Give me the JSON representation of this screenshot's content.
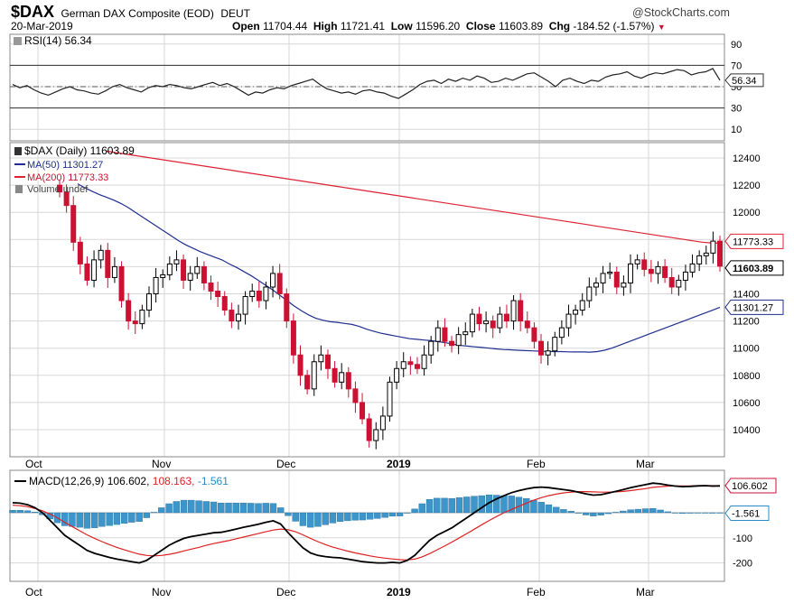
{
  "header": {
    "symbol": "$DAX",
    "name": "German DAX Composite (EOD)",
    "exchange": "DEUT",
    "date": "20-Mar-2019",
    "brand": "@StockCharts.com",
    "open_label": "Open",
    "open": "11704.44",
    "high_label": "High",
    "high": "11721.41",
    "low_label": "Low",
    "low": "11596.20",
    "close_label": "Close",
    "close": "11603.89",
    "chg_label": "Chg",
    "chg": "-184.52 (-1.57%)"
  },
  "colors": {
    "up": "#000000",
    "down": "#cc1133",
    "ma50": "#1f2f8f",
    "ma200": "#dd2233",
    "macd_line": "#000000",
    "signal_line": "#dd2222",
    "histogram": "#3d95c9",
    "hist_value_text": "#2a8cc4",
    "grid": "#d7d7d7"
  },
  "months": [
    "Oct",
    "Nov",
    "Dec",
    "2019",
    "Feb",
    "Mar"
  ],
  "rsi": {
    "legend": "RSI(14) 56.34",
    "badge": "56.34",
    "ticks": [
      "90",
      "70",
      "50",
      "30",
      "10"
    ],
    "values": [
      52,
      49,
      51,
      47,
      44,
      42,
      45,
      48,
      50,
      47,
      46,
      44,
      43,
      46,
      50,
      52,
      49,
      47,
      45,
      49,
      51,
      50,
      52,
      51,
      49,
      48,
      50,
      52,
      54,
      51,
      53,
      50,
      46,
      42,
      45,
      44,
      47,
      49,
      48,
      51,
      53,
      55,
      57,
      52,
      48,
      46,
      44,
      45,
      43,
      46,
      47,
      45,
      44,
      41,
      39,
      43,
      47,
      52,
      55,
      56,
      53,
      57,
      55,
      58,
      56,
      60,
      58,
      54,
      55,
      58,
      56,
      59,
      62,
      63,
      59,
      55,
      50,
      56,
      58,
      55,
      53,
      56,
      55,
      59,
      61,
      62,
      64,
      60,
      58,
      61,
      63,
      62,
      64,
      66,
      65,
      61,
      63,
      64,
      67,
      56
    ]
  },
  "price": {
    "legend_main": "$DAX (Daily) 11603.89",
    "legend_ma50": "MA(50) 11301.27",
    "legend_ma200": "MA(200) 11773.33",
    "legend_volume": "Volume undef",
    "badge_ma200": "11773.33",
    "badge_close": "11603.89",
    "badge_ma50": "11301.27",
    "ticks": [
      "12400",
      "12200",
      "12000",
      "11800",
      "11600",
      "11400",
      "11200",
      "11000",
      "10800",
      "10600",
      "10400"
    ],
    "closes": [
      12150,
      12050,
      11780,
      11620,
      11500,
      11650,
      11720,
      11520,
      11600,
      11350,
      11200,
      11180,
      11280,
      11400,
      11520,
      11540,
      11620,
      11650,
      11500,
      11550,
      11600,
      11480,
      11420,
      11380,
      11280,
      11200,
      11250,
      11380,
      11420,
      11350,
      11450,
      11550,
      11400,
      11200,
      10950,
      10800,
      10700,
      10900,
      10950,
      10850,
      10750,
      10820,
      10700,
      10600,
      10480,
      10320,
      10400,
      10500,
      10750,
      10850,
      10900,
      10880,
      10850,
      10950,
      11050,
      11150,
      11050,
      11020,
      11100,
      11120,
      11250,
      11180,
      11200,
      11150,
      11250,
      11200,
      11350,
      11200,
      11150,
      11050,
      10950,
      10980,
      11080,
      11150,
      11250,
      11280,
      11350,
      11450,
      11480,
      11550,
      11560,
      11450,
      11480,
      11620,
      11650,
      11580,
      11550,
      11600,
      11520,
      11450,
      11500,
      11560,
      11620,
      11680,
      11700,
      11788,
      11604
    ],
    "ma50": [
      12210,
      12180,
      12155,
      12130,
      12110,
      12090,
      12065,
      12035,
      12000,
      11965,
      11930,
      11895,
      11860,
      11825,
      11790,
      11760,
      11735,
      11710,
      11690,
      11670,
      11650,
      11620,
      11595,
      11565,
      11535,
      11500,
      11465,
      11430,
      11390,
      11350,
      11310,
      11275,
      11245,
      11220,
      11205,
      11195,
      11190,
      11182,
      11175,
      11160,
      11140,
      11125,
      11110,
      11100,
      11090,
      11080,
      11070,
      11065,
      11060,
      11055,
      11048,
      11040,
      11030,
      11020,
      11015,
      11010,
      11005,
      11000,
      10995,
      10990,
      10988,
      10985,
      10982,
      10980,
      10978,
      10976,
      10975,
      10975,
      10973,
      10972,
      10972,
      10971,
      10975,
      10985,
      11000,
      11020,
      11040,
      11060,
      11080,
      11100,
      11120,
      11140,
      11160,
      11180,
      11200,
      11220,
      11240,
      11260,
      11280,
      11301
    ],
    "ma200": [
      12450,
      12440,
      12430,
      12420,
      12410,
      12400,
      12390,
      12380,
      12370,
      12360,
      12350,
      12340,
      12330,
      12320,
      12310,
      12300,
      12290,
      12280,
      12270,
      12260,
      12250,
      12240,
      12230,
      12220,
      12210,
      12200,
      12190,
      12180,
      12170,
      12160,
      12150,
      12140,
      12130,
      12120,
      12110,
      12100,
      12090,
      12080,
      12070,
      12060,
      12050,
      12040,
      12030,
      12020,
      12010,
      12000,
      11990,
      11980,
      11970,
      11960,
      11950,
      11940,
      11930,
      11920,
      11910,
      11900,
      11890,
      11880,
      11870,
      11860,
      11850,
      11840,
      11830,
      11820,
      11810,
      11800,
      11790,
      11780,
      11775,
      11773
    ]
  },
  "macd": {
    "legend_label": "MACD(12,26,9)",
    "legend_macd": "106.602,",
    "legend_signal": "108.163,",
    "legend_hist": "-1.561",
    "badge_macd": "106.602",
    "badge_hist": "-1.561",
    "ticks": [
      "-100",
      "-200"
    ],
    "macd_values": [
      40,
      38,
      32,
      20,
      0,
      -30,
      -60,
      -90,
      -110,
      -130,
      -150,
      -162,
      -170,
      -178,
      -185,
      -190,
      -195,
      -200,
      -190,
      -170,
      -150,
      -130,
      -115,
      -102,
      -95,
      -90,
      -85,
      -80,
      -78,
      -72,
      -65,
      -58,
      -52,
      -46,
      -38,
      -32,
      -45,
      -80,
      -110,
      -140,
      -160,
      -170,
      -175,
      -178,
      -180,
      -185,
      -190,
      -195,
      -198,
      -200,
      -200,
      -198,
      -200,
      -190,
      -170,
      -140,
      -110,
      -90,
      -75,
      -60,
      -40,
      -20,
      0,
      20,
      40,
      55,
      68,
      80,
      88,
      95,
      100,
      102,
      100,
      96,
      92,
      88,
      82,
      75,
      70,
      72,
      78,
      85,
      92,
      100,
      106,
      112,
      118,
      115,
      110,
      106,
      104,
      105,
      107,
      108,
      106,
      107
    ],
    "signal_values": [
      30,
      28,
      24,
      17,
      8,
      -5,
      -20,
      -38,
      -55,
      -72,
      -88,
      -102,
      -115,
      -127,
      -138,
      -148,
      -157,
      -165,
      -170,
      -172,
      -170,
      -166,
      -160,
      -152,
      -145,
      -138,
      -130,
      -123,
      -117,
      -111,
      -104,
      -97,
      -90,
      -83,
      -76,
      -69,
      -65,
      -68,
      -76,
      -88,
      -102,
      -115,
      -127,
      -137,
      -145,
      -153,
      -160,
      -166,
      -172,
      -177,
      -181,
      -184,
      -187,
      -188,
      -185,
      -176,
      -163,
      -148,
      -133,
      -117,
      -100,
      -83,
      -66,
      -48,
      -31,
      -15,
      0,
      13,
      26,
      38,
      50,
      60,
      68,
      74,
      79,
      82,
      84,
      84,
      83,
      82,
      82,
      83,
      85,
      88,
      92,
      96,
      101,
      104,
      106,
      107,
      107,
      107,
      108,
      108,
      108,
      108
    ],
    "hist_values": [
      10,
      10,
      8,
      3,
      -8,
      -25,
      -40,
      -52,
      -55,
      -58,
      -62,
      -60,
      -55,
      -51,
      -47,
      -42,
      -38,
      -35,
      -20,
      2,
      20,
      36,
      45,
      50,
      50,
      48,
      45,
      43,
      39,
      39,
      39,
      39,
      38,
      37,
      38,
      37,
      20,
      -12,
      -34,
      -52,
      -58,
      -55,
      -48,
      -41,
      -35,
      -32,
      -30,
      -29,
      -26,
      -23,
      -19,
      -14,
      -13,
      -2,
      15,
      36,
      53,
      58,
      58,
      57,
      60,
      63,
      66,
      68,
      71,
      70,
      68,
      67,
      62,
      57,
      50,
      42,
      32,
      22,
      13,
      6,
      -2,
      -9,
      -13,
      -10,
      -4,
      2,
      7,
      12,
      14,
      16,
      17,
      11,
      4,
      -1,
      -3,
      -2,
      -1,
      0,
      -2,
      -1
    ]
  }
}
